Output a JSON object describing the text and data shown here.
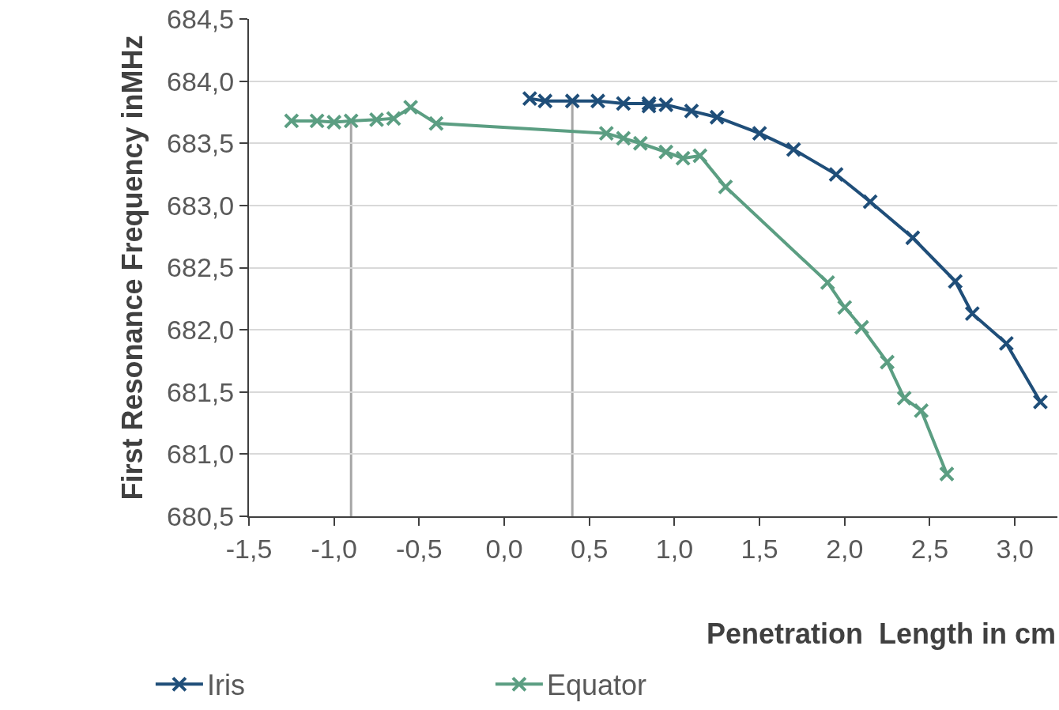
{
  "chart_data": {
    "type": "line",
    "xlabel": "Penetration  Length in cm",
    "ylabel": "First Resonance Frequency inMHz",
    "xlim": [
      -1.5,
      3.25
    ],
    "ylim": [
      680.5,
      684.5
    ],
    "xticks": [
      {
        "value": -1.5,
        "label": "-1,5"
      },
      {
        "value": -1,
        "label": "-1,0"
      },
      {
        "value": -0.5,
        "label": "-0,5"
      },
      {
        "value": 0,
        "label": "0,0"
      },
      {
        "value": 0.5,
        "label": "0,5"
      },
      {
        "value": 1,
        "label": "1,0"
      },
      {
        "value": 1.5,
        "label": "1,5"
      },
      {
        "value": 2,
        "label": "2,0"
      },
      {
        "value": 2.5,
        "label": "2,5"
      },
      {
        "value": 3,
        "label": "3,0"
      }
    ],
    "yticks": [
      {
        "value": 680.5,
        "label": "680,5"
      },
      {
        "value": 681,
        "label": "681,0"
      },
      {
        "value": 681.5,
        "label": "681,5"
      },
      {
        "value": 682,
        "label": "682,0"
      },
      {
        "value": 682.5,
        "label": "682,5"
      },
      {
        "value": 683,
        "label": "683,0"
      },
      {
        "value": 683.5,
        "label": "683,5"
      },
      {
        "value": 684,
        "label": "684,0"
      },
      {
        "value": 684.5,
        "label": "684,5"
      }
    ],
    "grid": "y",
    "legend": "bottom",
    "marker": "cross",
    "line_style": "solid",
    "series": [
      {
        "name": "Iris",
        "color": "#1f4e79",
        "x": [
          0.15,
          0.24,
          0.4,
          0.55,
          0.7,
          0.85,
          0.85,
          0.95,
          1.1,
          1.25,
          1.5,
          1.7,
          1.95,
          2.15,
          2.4,
          2.65,
          2.75,
          2.95,
          3.15
        ],
        "values": [
          683.86,
          683.84,
          683.84,
          683.84,
          683.82,
          683.82,
          683.8,
          683.81,
          683.76,
          683.71,
          683.58,
          683.45,
          683.25,
          683.03,
          682.74,
          682.39,
          682.13,
          681.89,
          681.42
        ]
      },
      {
        "name": "Equator",
        "color": "#5b9e82",
        "x": [
          -1.25,
          -1.1,
          -1,
          -0.9,
          -0.75,
          -0.65,
          -0.55,
          -0.4,
          0.6,
          0.7,
          0.8,
          0.95,
          1.05,
          1.15,
          1.3,
          1.9,
          2,
          2.1,
          2.25,
          2.35,
          2.45,
          2.6
        ],
        "values": [
          683.68,
          683.68,
          683.67,
          683.68,
          683.69,
          683.7,
          683.79,
          683.66,
          683.58,
          683.54,
          683.5,
          683.43,
          683.38,
          683.4,
          683.15,
          682.38,
          682.18,
          682.02,
          681.74,
          681.45,
          681.35,
          680.84
        ]
      }
    ],
    "ref_lines": [
      {
        "axis": "x",
        "value": -0.9,
        "color": "#a6a6a6"
      },
      {
        "axis": "x",
        "value": 0.4,
        "color": "#a6a6a6"
      }
    ]
  }
}
